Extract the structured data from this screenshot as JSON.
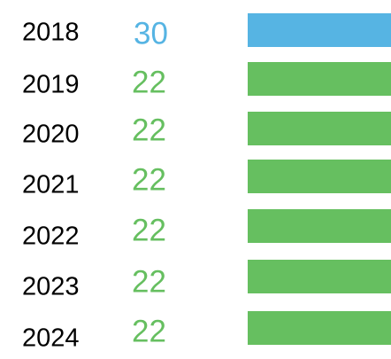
{
  "rows": [
    {
      "year": "2018",
      "value": 30,
      "color": "#56b4e3"
    },
    {
      "year": "2019",
      "value": 22,
      "color": "#66bf60"
    },
    {
      "year": "2020",
      "value": 22,
      "color": "#66bf60"
    },
    {
      "year": "2021",
      "value": 22,
      "color": "#66bf60"
    },
    {
      "year": "2022",
      "value": 22,
      "color": "#66bf60"
    },
    {
      "year": "2023",
      "value": 22,
      "color": "#66bf60"
    },
    {
      "year": "2024",
      "value": 22,
      "color": "#66bf60"
    }
  ]
}
